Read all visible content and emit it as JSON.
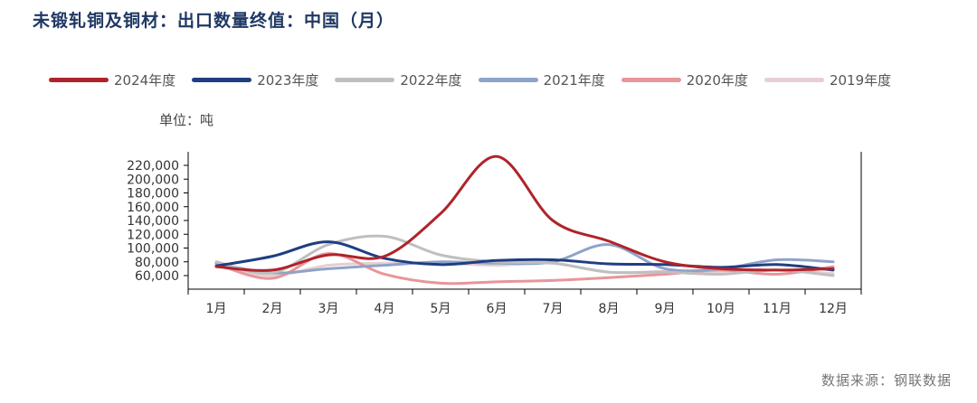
{
  "title": "未锻轧铜及铜材：出口数量终值：中国（月）",
  "unit_label": "单位：吨",
  "source": "数据来源：钢联数据",
  "chart_data": {
    "type": "line",
    "title": "未锻轧铜及铜材：出口数量终值：中国（月）",
    "xlabel": "",
    "ylabel": "",
    "categories": [
      "1月",
      "2月",
      "3月",
      "4月",
      "5月",
      "6月",
      "7月",
      "8月",
      "9月",
      "10月",
      "11月",
      "12月"
    ],
    "ylim": [
      60000,
      220000
    ],
    "yticks": [
      60000,
      80000,
      100000,
      120000,
      140000,
      160000,
      180000,
      200000,
      220000
    ],
    "ytick_labels": [
      "60,000",
      "80,000",
      "100,000",
      "120,000",
      "140,000",
      "160,000",
      "180,000",
      "200,000",
      "220,000"
    ],
    "grid": false,
    "legend_position": "top",
    "series": [
      {
        "name": "2024年度",
        "color": "#b0232a",
        "values": [
          73000,
          68000,
          90000,
          88000,
          150000,
          233000,
          140000,
          110000,
          80000,
          70000,
          68000,
          70000
        ]
      },
      {
        "name": "2023年度",
        "color": "#1f3e82",
        "values": [
          74000,
          88000,
          109000,
          85000,
          76000,
          82000,
          83000,
          77000,
          76000,
          72000,
          76000,
          68000
        ]
      },
      {
        "name": "2022年度",
        "color": "#bfbfbf",
        "values": [
          80000,
          64000,
          105000,
          117000,
          90000,
          80000,
          78000,
          65000,
          65000,
          62000,
          68000,
          60000
        ]
      },
      {
        "name": "2021年度",
        "color": "#8fa3c8",
        "values": [
          78000,
          64000,
          70000,
          75000,
          80000,
          78000,
          80000,
          105000,
          70000,
          70000,
          83000,
          80000
        ]
      },
      {
        "name": "2020年度",
        "color": "#e8959b",
        "values": [
          77000,
          56000,
          92000,
          62000,
          49000,
          51000,
          53000,
          57000,
          62000,
          68000,
          62000,
          73000
        ]
      },
      {
        "name": "2019年度",
        "color": "#e6cfd3",
        "values": [
          74000,
          60000,
          75000,
          78000,
          78000,
          75000,
          78000,
          65000,
          66000,
          66000,
          68000,
          63000
        ]
      }
    ]
  }
}
